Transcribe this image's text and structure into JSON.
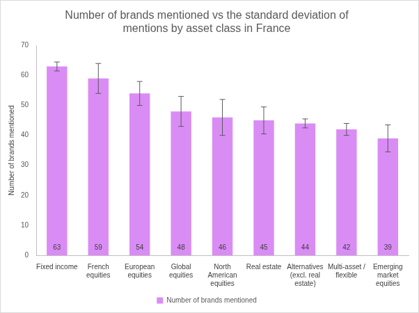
{
  "chart_data": {
    "type": "bar",
    "title": "Number of brands mentioned vs the standard deviation of mentions by asset class in France",
    "y_label": "Number of brands mentioned",
    "categories": [
      "Fixed income",
      "French equities",
      "European equities",
      "Global equities",
      "North American equities",
      "Real estate",
      "Alternatives (excl. real estate)",
      "Multi-asset / flexible",
      "Emerging market equities"
    ],
    "series": [
      {
        "name": "Number of brands mentioned",
        "color": "#da8cf5",
        "values": [
          63,
          59,
          54,
          48,
          46,
          45,
          44,
          42,
          39
        ],
        "error": [
          1.5,
          5,
          4,
          5,
          6,
          4.5,
          1.5,
          2,
          4.5
        ]
      }
    ],
    "ylim": [
      0,
      70
    ],
    "yticks": [
      0,
      10,
      20,
      30,
      40,
      50,
      60,
      70
    ],
    "grid": false,
    "legend": "bottom",
    "data_labels": true
  }
}
